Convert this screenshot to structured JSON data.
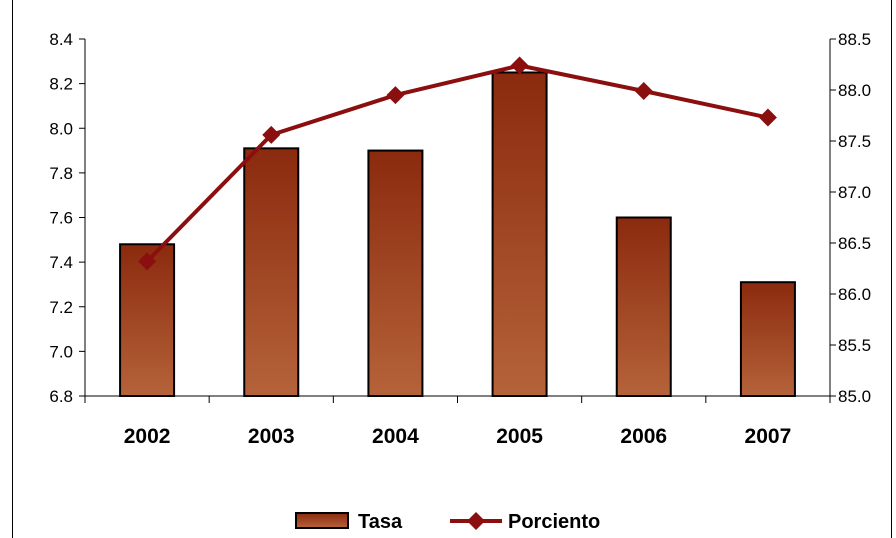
{
  "chart_data": {
    "type": "bar+line",
    "categories": [
      "2002",
      "2003",
      "2004",
      "2005",
      "2006",
      "2007"
    ],
    "series": [
      {
        "name": "Tasa",
        "type": "bar",
        "axis": "left",
        "values": [
          7.48,
          7.91,
          7.9,
          8.25,
          7.6,
          7.31
        ]
      },
      {
        "name": "Porciento",
        "type": "line",
        "axis": "right",
        "values": [
          86.32,
          87.56,
          87.95,
          88.24,
          87.99,
          87.73
        ]
      }
    ],
    "y_left": {
      "min": 6.8,
      "max": 8.4,
      "step": 0.2,
      "ticks": [
        "6.8",
        "7.0",
        "7.2",
        "7.4",
        "7.6",
        "7.8",
        "8.0",
        "8.2",
        "8.4"
      ]
    },
    "y_right": {
      "min": 85.0,
      "max": 88.5,
      "step": 0.5,
      "ticks": [
        "85.0",
        "85.5",
        "86.0",
        "86.5",
        "87.0",
        "87.5",
        "88.0",
        "88.5"
      ]
    },
    "legend": {
      "position": "bottom",
      "items": [
        "Tasa",
        "Porciento"
      ]
    },
    "grid": false,
    "colors": {
      "bar_top": "#8b2a0e",
      "bar_bottom": "#b5633a",
      "line": "#8b0f0f",
      "axis": "#000000"
    }
  }
}
